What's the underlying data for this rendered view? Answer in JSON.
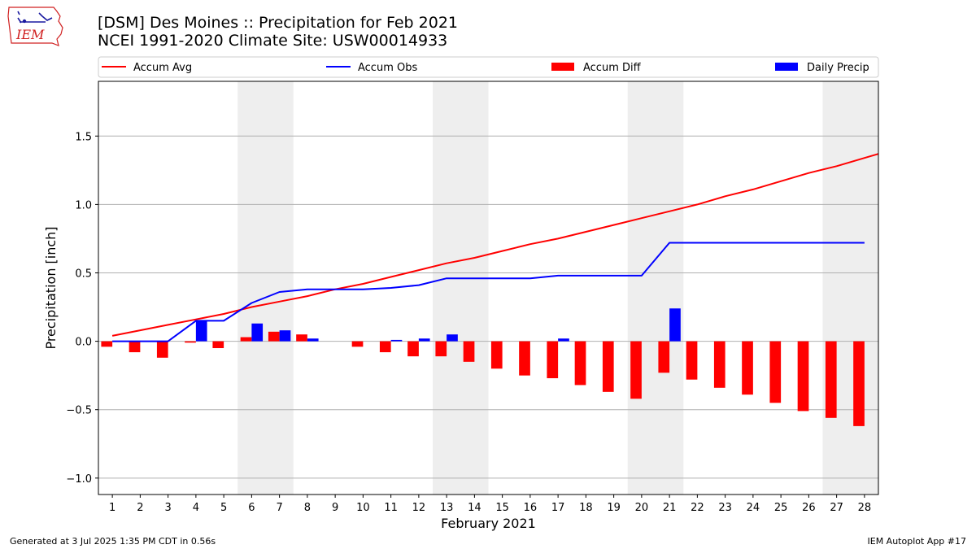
{
  "logo": {
    "text": "IEM",
    "icon": "iowa-state-outline-logo",
    "color": "#d02020"
  },
  "header": {
    "title": "[DSM] Des Moines :: Precipitation for Feb 2021",
    "subtitle": "NCEI 1991-2020 Climate Site: USW00014933"
  },
  "footer": {
    "generated": "Generated at 3 Jul 2025 1:35 PM CDT in 0.56s",
    "app": "IEM Autoplot App #17"
  },
  "chart_data": {
    "type": "bar",
    "xlabel": "February 2021",
    "ylabel": "Precipitation [inch]",
    "xlim": [
      0.5,
      28.5
    ],
    "ylim": [
      -1.12,
      1.9
    ],
    "yticks": [
      -1.0,
      -0.5,
      0.0,
      0.5,
      1.0,
      1.5
    ],
    "ytick_labels": [
      "−1.0",
      "−0.5",
      "0.0",
      "0.5",
      "1.0",
      "1.5"
    ],
    "categories": [
      "1",
      "2",
      "3",
      "4",
      "5",
      "6",
      "7",
      "8",
      "9",
      "10",
      "11",
      "12",
      "13",
      "14",
      "15",
      "16",
      "17",
      "18",
      "19",
      "20",
      "21",
      "22",
      "23",
      "24",
      "25",
      "26",
      "27",
      "28"
    ],
    "grid": "horizontal",
    "legend_position": "top",
    "weekend_shading": {
      "color": "#eeeeee",
      "ranges": [
        [
          5.5,
          7.5
        ],
        [
          12.5,
          14.5
        ],
        [
          19.5,
          21.5
        ],
        [
          26.5,
          28.5
        ]
      ]
    },
    "series": [
      {
        "name": "Accum Avg",
        "kind": "line",
        "color": "#ff0000",
        "x": [
          1,
          2,
          3,
          4,
          5,
          6,
          7,
          8,
          9,
          10,
          11,
          12,
          13,
          14,
          15,
          16,
          17,
          18,
          19,
          20,
          21,
          22,
          23,
          24,
          25,
          26,
          27,
          28,
          28.5
        ],
        "values": [
          0.04,
          0.08,
          0.12,
          0.16,
          0.2,
          0.25,
          0.29,
          0.33,
          0.38,
          0.42,
          0.47,
          0.52,
          0.57,
          0.61,
          0.66,
          0.71,
          0.75,
          0.8,
          0.85,
          0.9,
          0.95,
          1.0,
          1.06,
          1.11,
          1.17,
          1.23,
          1.28,
          1.34,
          1.37
        ]
      },
      {
        "name": "Accum Obs",
        "kind": "line",
        "color": "#0000ff",
        "x": [
          1,
          2,
          3,
          4,
          5,
          6,
          7,
          8,
          9,
          10,
          11,
          12,
          13,
          14,
          15,
          16,
          17,
          18,
          19,
          20,
          21,
          22,
          23,
          24,
          25,
          26,
          27,
          28
        ],
        "values": [
          0.0,
          0.0,
          0.0,
          0.15,
          0.15,
          0.28,
          0.36,
          0.38,
          0.38,
          0.38,
          0.39,
          0.41,
          0.46,
          0.46,
          0.46,
          0.46,
          0.48,
          0.48,
          0.48,
          0.48,
          0.72,
          0.72,
          0.72,
          0.72,
          0.72,
          0.72,
          0.72,
          0.72
        ]
      },
      {
        "name": "Accum Diff",
        "kind": "bar",
        "color": "#ff0000",
        "offset": -0.2,
        "values": [
          -0.04,
          -0.08,
          -0.12,
          -0.01,
          -0.05,
          0.03,
          0.07,
          0.05,
          0.0,
          -0.04,
          -0.08,
          -0.11,
          -0.11,
          -0.15,
          -0.2,
          -0.25,
          -0.27,
          -0.32,
          -0.37,
          -0.42,
          -0.23,
          -0.28,
          -0.34,
          -0.39,
          -0.45,
          -0.51,
          -0.56,
          -0.62
        ]
      },
      {
        "name": "Daily Precip",
        "kind": "bar",
        "color": "#0000ff",
        "offset": 0.2,
        "values": [
          0.0,
          0.0,
          0.0,
          0.15,
          0.0,
          0.13,
          0.08,
          0.02,
          0.0,
          0.0,
          0.01,
          0.02,
          0.05,
          0.0,
          0.0,
          0.0,
          0.02,
          0.0,
          0.0,
          0.0,
          0.24,
          0.0,
          0.0,
          0.0,
          0.0,
          0.0,
          0.0,
          0.0
        ]
      }
    ]
  }
}
